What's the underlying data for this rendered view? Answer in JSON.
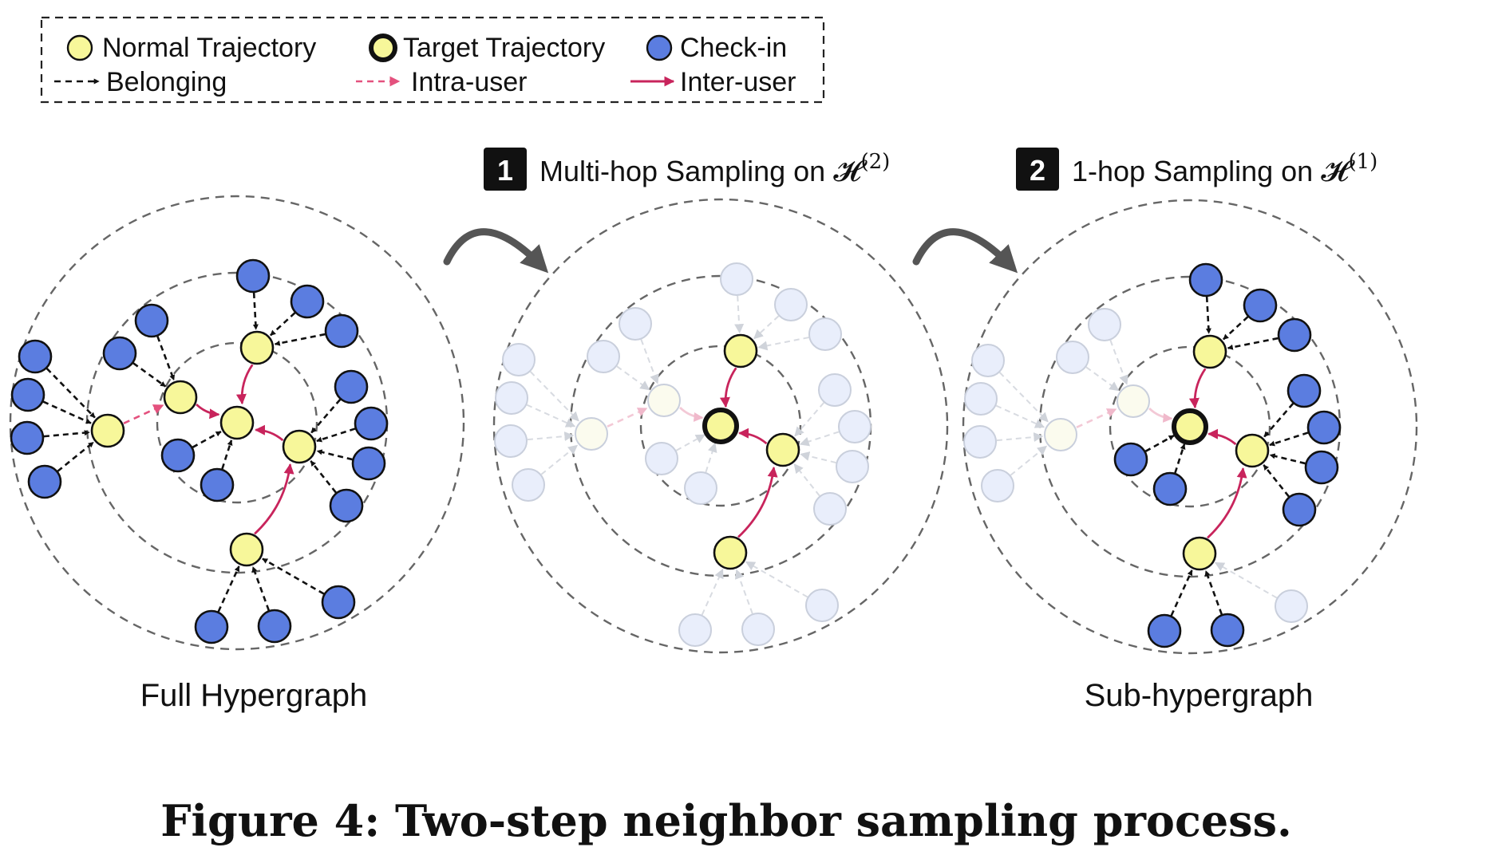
{
  "legend": {
    "normal_trajectory": "Normal Trajectory",
    "target_trajectory": "Target Trajectory",
    "checkin": "Check-in",
    "belonging": "Belonging",
    "intra_user": "Intra-user",
    "inter_user": "Inter-user"
  },
  "steps": [
    {
      "badge": "1",
      "label": "Multi-hop Sampling on ",
      "symbol": "𝓗",
      "superscript": "(2)"
    },
    {
      "badge": "2",
      "label": "1-hop Sampling on ",
      "symbol": "𝓗",
      "superscript": "(1)"
    }
  ],
  "panels": {
    "full": "Full Hypergraph",
    "sub": "Sub-hypergraph"
  },
  "caption": "Figure 4: Two-step neighbor sampling process.",
  "colors": {
    "trajectory_fill": "#f7f79a",
    "checkin_fill": "#5b7de0",
    "inter_user": "#c8245c",
    "intra_user": "#e4517e",
    "belonging": "#111111",
    "ring": "#666666",
    "faded_fill": "#e9eefb",
    "faded_stroke": "#c9cfdc"
  }
}
